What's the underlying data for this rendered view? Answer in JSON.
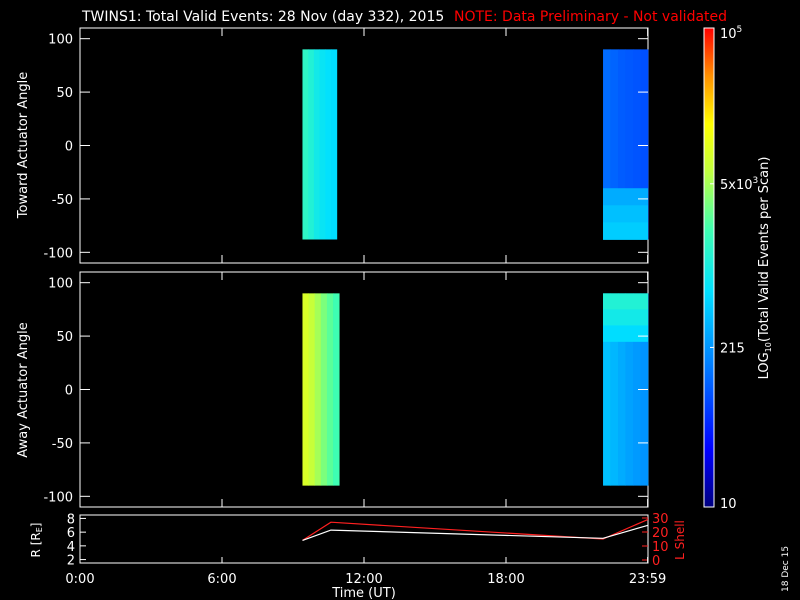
{
  "title": {
    "main": "TWINS1: Total Valid Events: 28 Nov (day 332), 2015",
    "note": "NOTE: Data Preliminary - Not validated",
    "note_color": "#ff0000"
  },
  "footer": {
    "date_stamp": "18 Dec 15"
  },
  "colors": {
    "background": "#000000",
    "axes": "#ffffff",
    "r_line": "#ffffff",
    "lshell_line": "#ff2020"
  },
  "chart_data": [
    {
      "type": "heatmap",
      "name": "toward",
      "ylabel": "Toward Actuator Angle",
      "ylim": [
        -110,
        110
      ],
      "yticks": [
        -100,
        -50,
        0,
        50,
        100
      ],
      "xlim": [
        0,
        24
      ],
      "color_scale": "log",
      "blocks": [
        {
          "x_start": 9.4,
          "x_end": 10.85,
          "y_min": -88,
          "y_max": 90,
          "column_values": [
            1500,
            1200,
            900,
            750,
            650,
            600
          ]
        },
        {
          "x_start": 22.1,
          "x_end": 24.0,
          "y_min": -88,
          "y_max": 90,
          "column_values": [
            120,
            110,
            100,
            95,
            90,
            85
          ],
          "low_angle_values": [
            300,
            400,
            480
          ]
        }
      ]
    },
    {
      "type": "heatmap",
      "name": "away",
      "ylabel": "Away Actuator Angle",
      "ylim": [
        -110,
        110
      ],
      "yticks": [
        -100,
        -50,
        0,
        50,
        100
      ],
      "xlim": [
        0,
        24
      ],
      "color_scale": "log",
      "blocks": [
        {
          "x_start": 9.4,
          "x_end": 10.95,
          "y_min": -90,
          "y_max": 90,
          "column_values": [
            9000,
            7000,
            5000,
            3500,
            2600,
            2000
          ]
        },
        {
          "x_start": 22.1,
          "x_end": 24.0,
          "y_min": -90,
          "y_max": 90,
          "column_values": [
            400,
            350,
            300,
            260,
            230,
            210
          ],
          "top_values": [
            1200,
            900,
            600
          ]
        }
      ]
    },
    {
      "type": "line",
      "name": "orbit",
      "xlim": [
        0,
        24
      ],
      "xticks": [
        0,
        6,
        12,
        18,
        23.983
      ],
      "xtick_labels": [
        "0:00",
        "6:00",
        "12:00",
        "18:00",
        "23:59"
      ],
      "xlabel": "Time (UT)",
      "left_axis": {
        "label_main": "R [R",
        "label_sub": "E",
        "label_end": "]",
        "ylim": [
          1.5,
          8.5
        ],
        "yticks": [
          2,
          4,
          6,
          8
        ]
      },
      "right_axis": {
        "label": "L Shell",
        "ylim": [
          0,
          30
        ],
        "yticks": [
          0,
          10,
          20,
          30
        ]
      },
      "series": [
        {
          "name": "R",
          "axis": "left",
          "x": [
            9.4,
            10.6,
            22.1,
            24.0
          ],
          "values": [
            4.8,
            6.3,
            5.1,
            7.0
          ]
        },
        {
          "name": "L Shell",
          "axis": "right",
          "x": [
            9.4,
            10.6,
            22.1,
            24.0
          ],
          "values": [
            14,
            27,
            15,
            29
          ]
        }
      ]
    }
  ],
  "colorbar": {
    "scale": "log",
    "range": [
      10,
      100000
    ],
    "tick_values": [
      10,
      215,
      5000,
      100000
    ],
    "tick_labels": [
      {
        "main": "10",
        "sup": ""
      },
      {
        "main": "215",
        "sup": ""
      },
      {
        "main": "5x10",
        "sup": "3"
      },
      {
        "main": "10",
        "sup": "5"
      }
    ],
    "label_pre": "LOG",
    "label_sub": "10",
    "label_post": "(Total Valid Events per Scan)"
  }
}
